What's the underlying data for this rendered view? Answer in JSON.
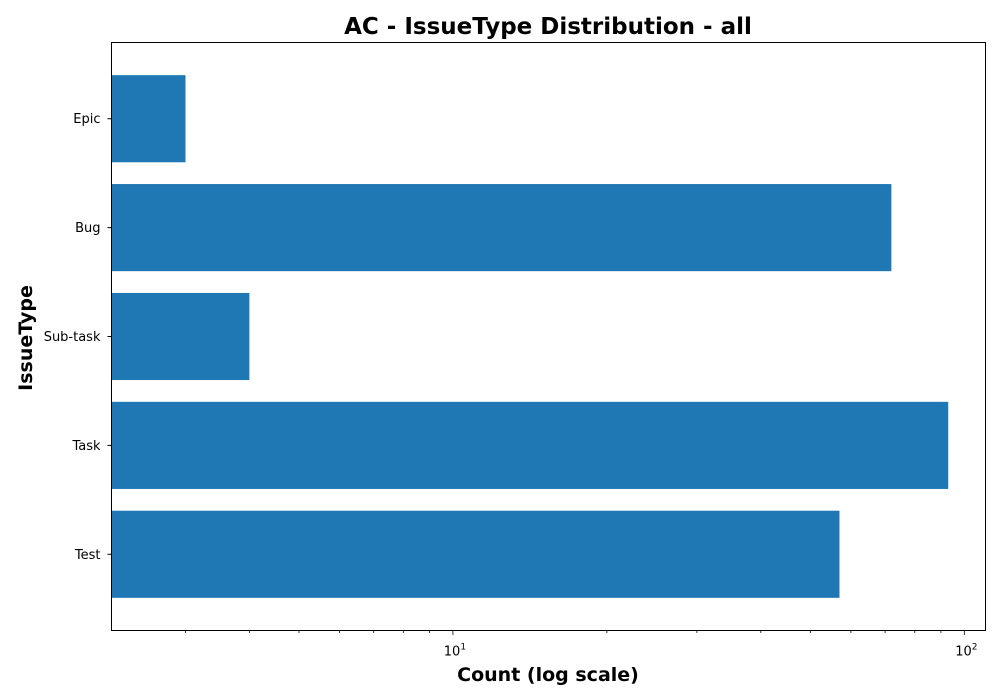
{
  "chart_data": {
    "type": "bar",
    "orientation": "horizontal",
    "title": "AC - IssueType Distribution - all",
    "xlabel": "Count (log scale)",
    "ylabel": "IssueType",
    "xscale": "log",
    "xlim": [
      2.15,
      110
    ],
    "x_ticks": [
      {
        "value": 10,
        "base": "10",
        "exp": "1"
      },
      {
        "value": 100,
        "base": "10",
        "exp": "2"
      }
    ],
    "categories": [
      "Epic",
      "Bug",
      "Sub-task",
      "Task",
      "Test"
    ],
    "values": [
      3,
      72,
      4,
      93,
      57
    ],
    "bar_color": "#1f77b4",
    "grid": false,
    "legend": "none"
  }
}
